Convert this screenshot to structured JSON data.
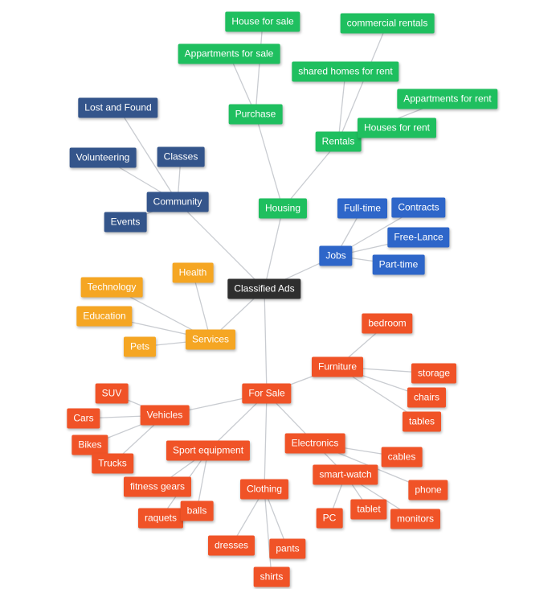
{
  "colors": {
    "root": "#2e2e2e",
    "housing": "#1fbf5f",
    "community": "#34558b",
    "jobs": "#2e66c9",
    "services": "#f5a623",
    "for_sale": "#f05327"
  },
  "nodes": {
    "root": {
      "label": "Classified Ads",
      "group": "root"
    },
    "housing": {
      "label": "Housing",
      "group": "housing"
    },
    "purchase": {
      "label": "Purchase",
      "group": "housing"
    },
    "house_for_sale": {
      "label": "House for sale",
      "group": "housing"
    },
    "appartments_for_sale": {
      "label": "Appartments for sale",
      "group": "housing"
    },
    "rentals": {
      "label": "Rentals",
      "group": "housing"
    },
    "commercial_rentals": {
      "label": "commercial rentals",
      "group": "housing"
    },
    "shared_homes_for_rent": {
      "label": "shared homes for rent",
      "group": "housing"
    },
    "appartments_for_rent": {
      "label": "Appartments for rent",
      "group": "housing"
    },
    "houses_for_rent": {
      "label": "Houses for rent",
      "group": "housing"
    },
    "community": {
      "label": "Community",
      "group": "community"
    },
    "lost_and_found": {
      "label": "Lost and Found",
      "group": "community"
    },
    "volunteering": {
      "label": "Volunteering",
      "group": "community"
    },
    "classes": {
      "label": "Classes",
      "group": "community"
    },
    "events": {
      "label": "Events",
      "group": "community"
    },
    "jobs": {
      "label": "Jobs",
      "group": "jobs"
    },
    "full_time": {
      "label": "Full-time",
      "group": "jobs"
    },
    "contracts": {
      "label": "Contracts",
      "group": "jobs"
    },
    "free_lance": {
      "label": "Free-Lance",
      "group": "jobs"
    },
    "part_time": {
      "label": "Part-time",
      "group": "jobs"
    },
    "services": {
      "label": "Services",
      "group": "services"
    },
    "health": {
      "label": "Health",
      "group": "services"
    },
    "technology": {
      "label": "Technology",
      "group": "services"
    },
    "education": {
      "label": "Education",
      "group": "services"
    },
    "pets": {
      "label": "Pets",
      "group": "services"
    },
    "for_sale": {
      "label": "For Sale",
      "group": "for_sale"
    },
    "furniture": {
      "label": "Furniture",
      "group": "for_sale"
    },
    "bedroom": {
      "label": "bedroom",
      "group": "for_sale"
    },
    "storage": {
      "label": "storage",
      "group": "for_sale"
    },
    "chairs": {
      "label": "chairs",
      "group": "for_sale"
    },
    "tables": {
      "label": "tables",
      "group": "for_sale"
    },
    "vehicles": {
      "label": "Vehicles",
      "group": "for_sale"
    },
    "suv": {
      "label": "SUV",
      "group": "for_sale"
    },
    "cars": {
      "label": "Cars",
      "group": "for_sale"
    },
    "bikes": {
      "label": "Bikes",
      "group": "for_sale"
    },
    "trucks": {
      "label": "Trucks",
      "group": "for_sale"
    },
    "sport_equipment": {
      "label": "Sport equipment",
      "group": "for_sale"
    },
    "fitness_gears": {
      "label": "fitness gears",
      "group": "for_sale"
    },
    "raquets": {
      "label": "raquets",
      "group": "for_sale"
    },
    "balls": {
      "label": "balls",
      "group": "for_sale"
    },
    "clothing": {
      "label": "Clothing",
      "group": "for_sale"
    },
    "dresses": {
      "label": "dresses",
      "group": "for_sale"
    },
    "pants": {
      "label": "pants",
      "group": "for_sale"
    },
    "shirts": {
      "label": "shirts",
      "group": "for_sale"
    },
    "electronics": {
      "label": "Electronics",
      "group": "for_sale"
    },
    "cables": {
      "label": "cables",
      "group": "for_sale"
    },
    "smart_watch": {
      "label": "smart-watch",
      "group": "for_sale"
    },
    "phone": {
      "label": "phone",
      "group": "for_sale"
    },
    "pc": {
      "label": "PC",
      "group": "for_sale"
    },
    "tablet": {
      "label": "tablet",
      "group": "for_sale"
    },
    "monitors": {
      "label": "monitors",
      "group": "for_sale"
    }
  },
  "edges": [
    [
      "root",
      "housing"
    ],
    [
      "housing",
      "purchase"
    ],
    [
      "purchase",
      "house_for_sale"
    ],
    [
      "purchase",
      "appartments_for_sale"
    ],
    [
      "housing",
      "rentals"
    ],
    [
      "rentals",
      "commercial_rentals"
    ],
    [
      "rentals",
      "shared_homes_for_rent"
    ],
    [
      "rentals",
      "appartments_for_rent"
    ],
    [
      "rentals",
      "houses_for_rent"
    ],
    [
      "root",
      "community"
    ],
    [
      "community",
      "lost_and_found"
    ],
    [
      "community",
      "volunteering"
    ],
    [
      "community",
      "classes"
    ],
    [
      "community",
      "events"
    ],
    [
      "root",
      "jobs"
    ],
    [
      "jobs",
      "full_time"
    ],
    [
      "jobs",
      "contracts"
    ],
    [
      "jobs",
      "free_lance"
    ],
    [
      "jobs",
      "part_time"
    ],
    [
      "root",
      "services"
    ],
    [
      "services",
      "health"
    ],
    [
      "services",
      "technology"
    ],
    [
      "services",
      "education"
    ],
    [
      "services",
      "pets"
    ],
    [
      "root",
      "for_sale"
    ],
    [
      "for_sale",
      "furniture"
    ],
    [
      "furniture",
      "bedroom"
    ],
    [
      "furniture",
      "storage"
    ],
    [
      "furniture",
      "chairs"
    ],
    [
      "furniture",
      "tables"
    ],
    [
      "for_sale",
      "vehicles"
    ],
    [
      "vehicles",
      "suv"
    ],
    [
      "vehicles",
      "cars"
    ],
    [
      "vehicles",
      "bikes"
    ],
    [
      "vehicles",
      "trucks"
    ],
    [
      "for_sale",
      "sport_equipment"
    ],
    [
      "sport_equipment",
      "fitness_gears"
    ],
    [
      "sport_equipment",
      "raquets"
    ],
    [
      "sport_equipment",
      "balls"
    ],
    [
      "for_sale",
      "clothing"
    ],
    [
      "clothing",
      "dresses"
    ],
    [
      "clothing",
      "pants"
    ],
    [
      "clothing",
      "shirts"
    ],
    [
      "for_sale",
      "electronics"
    ],
    [
      "electronics",
      "cables"
    ],
    [
      "electronics",
      "smart_watch"
    ],
    [
      "electronics",
      "phone"
    ],
    [
      "smart_watch",
      "pc"
    ],
    [
      "smart_watch",
      "tablet"
    ],
    [
      "smart_watch",
      "monitors"
    ]
  ]
}
